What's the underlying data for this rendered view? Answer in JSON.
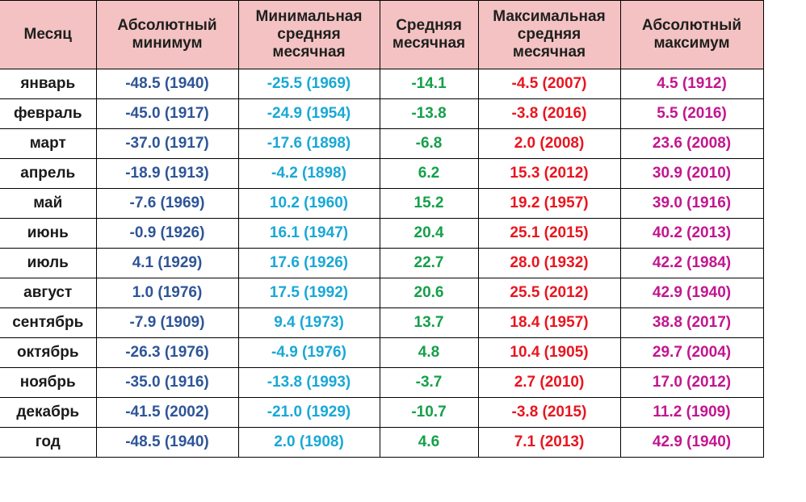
{
  "headers": {
    "month": "Месяц",
    "abs_min": "Абсолютный\nминимум",
    "min_avg": "Минимальная\nсредняя\nмесячная",
    "avg": "Средняя\nмесячная",
    "max_avg": "Максимальная\nсредняя\nмесячная",
    "abs_max": "Абсолютный\nмаксимум"
  },
  "rows": [
    {
      "month": "январь",
      "abs_min": "-48.5 (1940)",
      "min_avg": "-25.5 (1969)",
      "avg": "-14.1",
      "max_avg": "-4.5 (2007)",
      "abs_max": "4.5 (1912)"
    },
    {
      "month": "февраль",
      "abs_min": "-45.0 (1917)",
      "min_avg": "-24.9 (1954)",
      "avg": "-13.8",
      "max_avg": "-3.8 (2016)",
      "abs_max": "5.5 (2016)"
    },
    {
      "month": "март",
      "abs_min": "-37.0 (1917)",
      "min_avg": "-17.6 (1898)",
      "avg": "-6.8",
      "max_avg": "2.0 (2008)",
      "abs_max": "23.6 (2008)"
    },
    {
      "month": "апрель",
      "abs_min": "-18.9 (1913)",
      "min_avg": "-4.2 (1898)",
      "avg": "6.2",
      "max_avg": "15.3 (2012)",
      "abs_max": "30.9 (2010)"
    },
    {
      "month": "май",
      "abs_min": "-7.6 (1969)",
      "min_avg": "10.2 (1960)",
      "avg": "15.2",
      "max_avg": "19.2 (1957)",
      "abs_max": "39.0 (1916)"
    },
    {
      "month": "июнь",
      "abs_min": "-0.9 (1926)",
      "min_avg": "16.1 (1947)",
      "avg": "20.4",
      "max_avg": "25.1 (2015)",
      "abs_max": "40.2 (2013)"
    },
    {
      "month": "июль",
      "abs_min": "4.1 (1929)",
      "min_avg": "17.6 (1926)",
      "avg": "22.7",
      "max_avg": "28.0 (1932)",
      "abs_max": "42.2 (1984)"
    },
    {
      "month": "август",
      "abs_min": "1.0 (1976)",
      "min_avg": "17.5 (1992)",
      "avg": "20.6",
      "max_avg": "25.5 (2012)",
      "abs_max": "42.9 (1940)"
    },
    {
      "month": "сентябрь",
      "abs_min": "-7.9 (1909)",
      "min_avg": "9.4 (1973)",
      "avg": "13.7",
      "max_avg": "18.4 (1957)",
      "abs_max": "38.8 (2017)"
    },
    {
      "month": "октябрь",
      "abs_min": "-26.3 (1976)",
      "min_avg": "-4.9 (1976)",
      "avg": "4.8",
      "max_avg": "10.4 (1905)",
      "abs_max": "29.7 (2004)"
    },
    {
      "month": "ноябрь",
      "abs_min": "-35.0 (1916)",
      "min_avg": "-13.8 (1993)",
      "avg": "-3.7",
      "max_avg": "2.7 (2010)",
      "abs_max": "17.0 (2012)"
    },
    {
      "month": "декабрь",
      "abs_min": "-41.5 (2002)",
      "min_avg": "-21.0 (1929)",
      "avg": "-10.7",
      "max_avg": "-3.8 (2015)",
      "abs_max": "11.2 (1909)"
    },
    {
      "month": "год",
      "abs_min": "-48.5 (1940)",
      "min_avg": "2.0 (1908)",
      "avg": "4.6",
      "max_avg": "7.1 (2013)",
      "abs_max": "42.9 (1940)"
    }
  ],
  "colors": {
    "header_bg": "#f4c2c2",
    "abs_min": "#2e5597",
    "min_avg": "#19a8d6",
    "avg": "#15a04a",
    "max_avg": "#e8161f",
    "abs_max": "#c2168f"
  }
}
